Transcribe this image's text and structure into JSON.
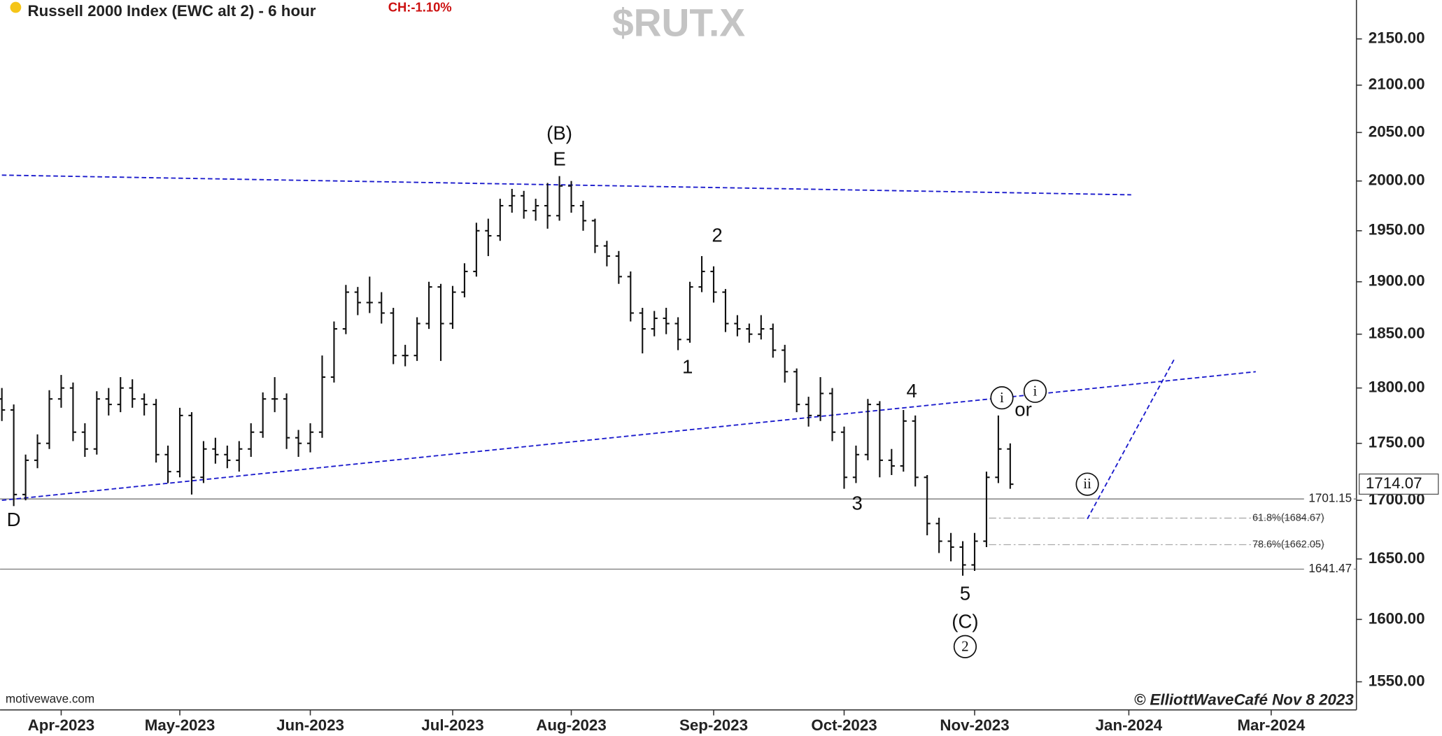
{
  "chart_data": {
    "type": "ohlc",
    "title": "Russell 2000 Index (EWC alt 2) - 6 hour",
    "change_label": "CH:-1.10%",
    "symbol": "$RUT.X",
    "source": "motivewave.com",
    "copyright": "© ElliottWaveCafé Nov 8 2023",
    "log_scale": true,
    "color": "#111111",
    "line_color": "#1a1acc",
    "categories": [
      null,
      null,
      null,
      null,
      null,
      "Apr-2023",
      null,
      null,
      null,
      null,
      null,
      null,
      null,
      null,
      null,
      "May-2023",
      null,
      null,
      null,
      null,
      null,
      null,
      null,
      null,
      null,
      null,
      "Jun-2023",
      null,
      null,
      null,
      null,
      null,
      null,
      null,
      null,
      null,
      null,
      null,
      "Jul-2023",
      null,
      null,
      null,
      null,
      null,
      null,
      null,
      null,
      null,
      "Aug-2023",
      null,
      null,
      null,
      null,
      null,
      null,
      null,
      null,
      null,
      null,
      null,
      "Sep-2023",
      null,
      null,
      null,
      null,
      null,
      null,
      null,
      null,
      null,
      null,
      "Oct-2023",
      null,
      null,
      null,
      null,
      null,
      null,
      null,
      null,
      null,
      null,
      "Nov-2023",
      null,
      null,
      null,
      null,
      null,
      null,
      null,
      null,
      null,
      null,
      null,
      null,
      "Jan-2024",
      null,
      null,
      null,
      null,
      null,
      null,
      null,
      null,
      null,
      null,
      null,
      "Mar-2024",
      null,
      null,
      null,
      null,
      null,
      null
    ],
    "open": [
      1790,
      1780,
      1705,
      1735,
      1750,
      1790,
      1800,
      1760,
      1745,
      1790,
      1785,
      1800,
      1790,
      1785,
      1740,
      1725,
      1775,
      1720,
      1745,
      1740,
      1735,
      1745,
      1760,
      1790,
      1790,
      1755,
      1750,
      1760,
      1810,
      1855,
      1890,
      1880,
      1880,
      1870,
      1830,
      1830,
      1860,
      1895,
      1860,
      1890,
      1910,
      1950,
      1945,
      1975,
      1985,
      1970,
      1975,
      1965,
      1995,
      1975,
      1960,
      1935,
      1925,
      1905,
      1870,
      1855,
      1865,
      1860,
      1845,
      1895,
      1910,
      1890,
      1860,
      1855,
      1850,
      1855,
      1835,
      1815,
      1785,
      1775,
      1795,
      1760,
      1720,
      1740,
      1785,
      1735,
      1730,
      1770,
      1720,
      1680,
      1665,
      1660,
      1645,
      1665,
      1720,
      1745,
      null,
      null,
      null,
      null,
      null,
      null,
      null,
      null,
      null,
      null,
      null,
      null,
      null,
      null,
      null,
      null,
      null,
      null,
      null,
      null,
      null,
      null,
      null,
      null,
      null,
      null,
      null,
      null
    ],
    "high": [
      1800,
      1785,
      1740,
      1758,
      1798,
      1812,
      1805,
      1768,
      1797,
      1800,
      1810,
      1808,
      1795,
      1790,
      1748,
      1782,
      1778,
      1752,
      1755,
      1748,
      1752,
      1768,
      1796,
      1810,
      1795,
      1762,
      1768,
      1830,
      1862,
      1897,
      1895,
      1905,
      1890,
      1875,
      1840,
      1866,
      1900,
      1898,
      1896,
      1918,
      1958,
      1962,
      1982,
      1992,
      1990,
      1982,
      1998,
      2005,
      2000,
      1980,
      1962,
      1940,
      1930,
      1910,
      1875,
      1872,
      1875,
      1866,
      1900,
      1925,
      1915,
      1893,
      1868,
      1860,
      1868,
      1860,
      1840,
      1818,
      1792,
      1810,
      1800,
      1765,
      1748,
      1790,
      1788,
      1745,
      1780,
      1775,
      1722,
      1685,
      1672,
      1665,
      1672,
      1725,
      1775,
      1750,
      null,
      null,
      null,
      null,
      null,
      null,
      null,
      null,
      null,
      null,
      null,
      null,
      null,
      null,
      null,
      null,
      null,
      null,
      null,
      null,
      null,
      null,
      null,
      null,
      null,
      null,
      null,
      null
    ],
    "low": [
      1770,
      1695,
      1700,
      1728,
      1745,
      1782,
      1752,
      1738,
      1740,
      1775,
      1778,
      1782,
      1775,
      1733,
      1715,
      1720,
      1705,
      1715,
      1732,
      1728,
      1725,
      1738,
      1755,
      1778,
      1745,
      1738,
      1742,
      1755,
      1805,
      1850,
      1868,
      1870,
      1860,
      1822,
      1820,
      1825,
      1855,
      1825,
      1855,
      1885,
      1905,
      1925,
      1940,
      1968,
      1962,
      1960,
      1952,
      1960,
      1968,
      1950,
      1928,
      1915,
      1898,
      1862,
      1832,
      1848,
      1850,
      1835,
      1842,
      1890,
      1880,
      1852,
      1848,
      1842,
      1845,
      1828,
      1805,
      1778,
      1765,
      1770,
      1752,
      1710,
      1715,
      1735,
      1720,
      1722,
      1725,
      1712,
      1670,
      1655,
      1648,
      1636,
      1640,
      1660,
      1715,
      1710,
      null,
      null,
      null,
      null,
      null,
      null,
      null,
      null,
      null,
      null,
      null,
      null,
      null,
      null,
      null,
      null,
      null,
      null,
      null,
      null,
      null,
      null,
      null,
      null,
      null,
      null,
      null,
      null
    ],
    "close": [
      1780,
      1705,
      1735,
      1750,
      1790,
      1800,
      1760,
      1745,
      1790,
      1785,
      1800,
      1790,
      1785,
      1740,
      1725,
      1775,
      1720,
      1745,
      1740,
      1735,
      1745,
      1760,
      1790,
      1790,
      1755,
      1750,
      1760,
      1810,
      1855,
      1890,
      1880,
      1880,
      1870,
      1830,
      1830,
      1860,
      1895,
      1860,
      1890,
      1910,
      1950,
      1945,
      1975,
      1985,
      1970,
      1975,
      1965,
      1995,
      1975,
      1960,
      1935,
      1925,
      1905,
      1870,
      1855,
      1865,
      1860,
      1845,
      1895,
      1910,
      1890,
      1860,
      1855,
      1850,
      1855,
      1835,
      1815,
      1785,
      1775,
      1795,
      1760,
      1720,
      1740,
      1785,
      1735,
      1730,
      1770,
      1720,
      1680,
      1665,
      1660,
      1645,
      1665,
      1720,
      1745,
      1714,
      null,
      null,
      null,
      null,
      null,
      null,
      null,
      null,
      null,
      null,
      null,
      null,
      null,
      null,
      null,
      null,
      null,
      null,
      null,
      null,
      null,
      null,
      null,
      null,
      null,
      null,
      null,
      null
    ],
    "ylim": [
      1528,
      2193
    ],
    "yticks": [
      {
        "value": 1550,
        "label": "1550.00"
      },
      {
        "value": 1600,
        "label": "1600.00"
      },
      {
        "value": 1650,
        "label": "1650.00"
      },
      {
        "value": 1700,
        "label": "1700.00"
      },
      {
        "value": 1750,
        "label": "1750.00"
      },
      {
        "value": 1800,
        "label": "1800.00"
      },
      {
        "value": 1850,
        "label": "1850.00"
      },
      {
        "value": 1900,
        "label": "1900.00"
      },
      {
        "value": 1950,
        "label": "1950.00"
      },
      {
        "value": 2000,
        "label": "2000.00"
      },
      {
        "value": 2050,
        "label": "2050.00"
      },
      {
        "value": 2100,
        "label": "2100.00"
      },
      {
        "value": 2150,
        "label": "2150.00"
      }
    ],
    "last_price": {
      "value": 1714.07,
      "label": "1714.07"
    },
    "levels": [
      {
        "value": 1701.15,
        "label": "1701.15"
      },
      {
        "value": 1641.47,
        "label": "1641.47"
      }
    ],
    "fib_levels": [
      {
        "value": 1684.67,
        "label": "61.8%(1684.67)",
        "start": 83.2
      },
      {
        "value": 1662.05,
        "label": "78.6%(1662.05)",
        "start": 83.2
      }
    ],
    "trendlines": [
      {
        "points": [
          [
            0,
            2006
          ],
          [
            95.2,
            1986
          ]
        ]
      },
      {
        "points": [
          [
            0,
            1700
          ],
          [
            105.7,
            1815
          ]
        ]
      },
      {
        "points": [
          [
            91.5,
            1684
          ],
          [
            98.8,
            1826
          ]
        ]
      }
    ],
    "annotations": [
      {
        "text": "(B)",
        "x": 47,
        "y": 2049
      },
      {
        "text": "E",
        "x": 47,
        "y": 2022
      },
      {
        "text": "D",
        "x": 1,
        "y": 1683
      },
      {
        "text": "1",
        "x": 57.8,
        "y": 1819
      },
      {
        "text": "2",
        "x": 60.3,
        "y": 1945
      },
      {
        "text": "3",
        "x": 72.1,
        "y": 1697
      },
      {
        "text": "4",
        "x": 76.7,
        "y": 1797
      },
      {
        "text": "5",
        "x": 81.2,
        "y": 1621
      },
      {
        "text": "(C)",
        "x": 81.2,
        "y": 1598
      },
      {
        "text": "2",
        "x": 81.2,
        "y": 1578,
        "circled": true
      },
      {
        "text": "i",
        "x": 84.3,
        "y": 1791,
        "circled": true
      },
      {
        "text": "or",
        "x": 86.1,
        "y": 1780
      },
      {
        "text": "i",
        "x": 87.1,
        "y": 1797,
        "circled": true
      },
      {
        "text": "ii",
        "x": 91.5,
        "y": 1714,
        "circled": true
      }
    ]
  }
}
